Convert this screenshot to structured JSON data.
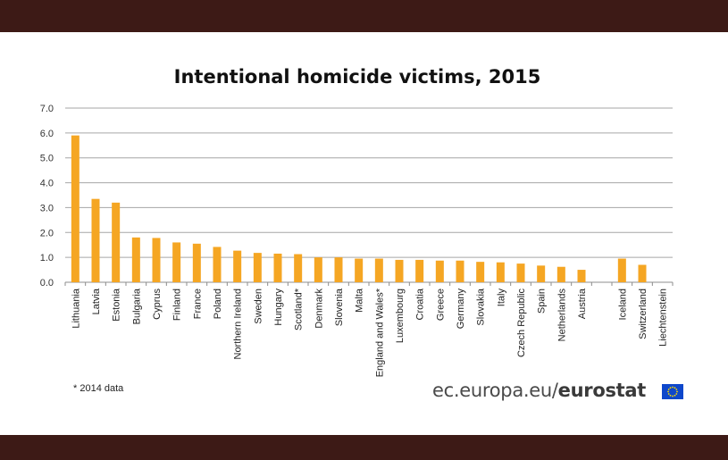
{
  "chart_data": {
    "type": "bar",
    "title": "Intentional homicide victims, 2015",
    "xlabel": "",
    "ylabel": "",
    "ylim": [
      0,
      7
    ],
    "yticks": [
      "0.0",
      "1.0",
      "2.0",
      "3.0",
      "4.0",
      "5.0",
      "6.0",
      "7.0"
    ],
    "grid": true,
    "bar_color": "#f5a623",
    "categories": [
      "Lithuania",
      "Latvia",
      "Estonia",
      "Bulgaria",
      "Cyprus",
      "Finland",
      "France",
      "Poland",
      "Northern Ireland",
      "Sweden",
      "Hungary",
      "Scotland*",
      "Denmark",
      "Slovenia",
      "Malta",
      "England and Wales*",
      "Luxembourg",
      "Croatia",
      "Greece",
      "Germany",
      "Slovakia",
      "Italy",
      "Czech Republic",
      "Spain",
      "Netherlands",
      "Austria",
      "",
      "Iceland",
      "Switzerland",
      "Liechtenstein"
    ],
    "values": [
      5.9,
      3.35,
      3.2,
      1.8,
      1.78,
      1.6,
      1.55,
      1.42,
      1.27,
      1.18,
      1.15,
      1.13,
      1.0,
      1.0,
      0.95,
      0.95,
      0.9,
      0.9,
      0.87,
      0.87,
      0.82,
      0.8,
      0.75,
      0.67,
      0.62,
      0.5,
      null,
      0.95,
      0.7,
      0.0
    ]
  },
  "footnote": "* 2014 data",
  "brand": {
    "domain": "ec.europa.eu/",
    "name": "eurostat"
  },
  "colors": {
    "band": "#3d1a16",
    "bar": "#f5a623",
    "grid": "#a6a6a6",
    "flag": "#0e47cb",
    "flag_stars": "#ffdd00"
  }
}
